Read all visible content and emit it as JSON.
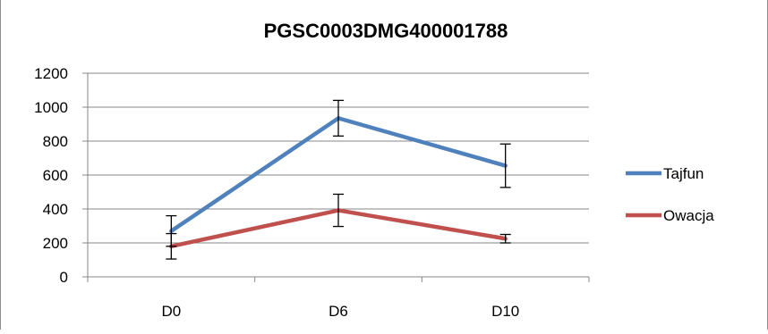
{
  "chart_data": {
    "type": "line",
    "title": "PGSC0003DMG400001788",
    "xlabel": "",
    "ylabel": "",
    "categories": [
      "D0",
      "D6",
      "D10"
    ],
    "ylim": [
      0,
      1200
    ],
    "yticks": [
      0,
      200,
      400,
      600,
      800,
      1000,
      1200
    ],
    "grid": true,
    "legend": "right",
    "series": [
      {
        "name": "Tajfun",
        "color": "#4f81bd",
        "values": [
          270,
          935,
          655
        ],
        "error": [
          90,
          105,
          128
        ]
      },
      {
        "name": "Owacja",
        "color": "#c0504d",
        "values": [
          180,
          392,
          225
        ],
        "error": [
          75,
          95,
          25
        ]
      }
    ]
  }
}
